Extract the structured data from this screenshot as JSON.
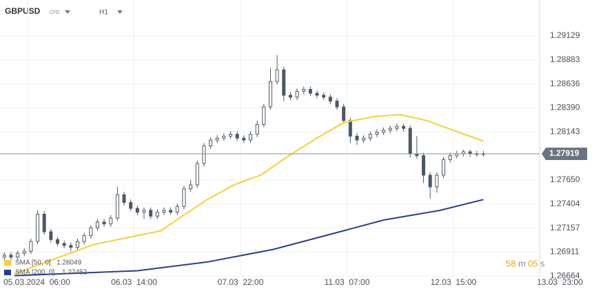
{
  "header": {
    "symbol": "GBPUSD",
    "symbol_type": "CFD",
    "interval": "H1"
  },
  "countdown": {
    "minutes": "58",
    "minutes_unit": "m",
    "seconds": "05",
    "seconds_unit": "s"
  },
  "chart_data": {
    "type": "candlestick",
    "color": "#4d5866",
    "x": [
      -7,
      -5,
      -3,
      -1,
      1,
      3,
      5,
      7,
      9,
      11,
      13,
      15,
      17,
      19,
      21,
      23,
      25,
      27,
      29,
      31,
      33,
      35,
      37,
      39,
      41,
      43,
      45,
      47,
      49,
      51,
      53,
      55,
      57,
      59,
      61,
      63,
      65,
      67,
      69,
      71,
      73,
      75,
      77,
      79,
      81,
      83,
      85,
      87,
      89,
      91,
      93,
      95,
      97,
      99,
      101,
      103,
      105,
      107,
      109,
      111,
      113,
      115,
      117,
      119,
      121,
      123,
      125,
      127,
      129,
      131,
      133,
      135,
      137
    ],
    "open": [
      1.2686,
      1.2688,
      1.2686,
      1.269,
      1.2692,
      1.2702,
      1.273,
      1.2712,
      1.2704,
      1.27,
      1.2698,
      1.2696,
      1.2702,
      1.2708,
      1.2716,
      1.2722,
      1.272,
      1.2726,
      1.275,
      1.2742,
      1.2736,
      1.2732,
      1.2734,
      1.2728,
      1.2732,
      1.2734,
      1.2732,
      1.2738,
      1.2756,
      1.276,
      1.2782,
      1.28,
      1.2806,
      1.2808,
      1.281,
      1.2812,
      1.2808,
      1.2806,
      1.2812,
      1.2822,
      1.284,
      1.2866,
      1.2878,
      1.2852,
      1.285,
      1.2856,
      1.2858,
      1.2854,
      1.2852,
      1.285,
      1.2846,
      1.284,
      1.2826,
      1.281,
      1.2806,
      1.2808,
      1.2812,
      1.2814,
      1.2816,
      1.2818,
      1.282,
      1.2818,
      1.2792,
      1.279,
      1.277,
      1.2758,
      1.277,
      1.2786,
      1.279,
      1.2792,
      1.2794,
      1.2792,
      1.2792
    ],
    "high": [
      1.2691,
      1.2691,
      1.2693,
      1.2695,
      1.2705,
      1.2734,
      1.2733,
      1.2715,
      1.2707,
      1.2703,
      1.2701,
      1.2705,
      1.2711,
      1.2719,
      1.2725,
      1.2725,
      1.2729,
      1.2758,
      1.2753,
      1.2745,
      1.2739,
      1.2737,
      1.2737,
      1.2735,
      1.2737,
      1.2737,
      1.2741,
      1.2759,
      1.2765,
      1.2785,
      1.2803,
      1.2809,
      1.2811,
      1.2813,
      1.2815,
      1.2815,
      1.2811,
      1.2815,
      1.2826,
      1.2843,
      1.288,
      1.2893,
      1.2881,
      1.2855,
      1.2859,
      1.2861,
      1.2861,
      1.2857,
      1.2855,
      1.2853,
      1.2849,
      1.2843,
      1.2829,
      1.2813,
      1.2811,
      1.2815,
      1.2817,
      1.2819,
      1.2821,
      1.2823,
      1.2823,
      1.2821,
      1.281,
      1.2793,
      1.2773,
      1.2773,
      1.2789,
      1.2793,
      1.2795,
      1.2796,
      1.2796,
      1.2795,
      1.2795
    ],
    "low": [
      1.2683,
      1.2683,
      1.2683,
      1.2687,
      1.2689,
      1.2699,
      1.2709,
      1.2701,
      1.2697,
      1.2695,
      1.2692,
      1.2693,
      1.2699,
      1.2705,
      1.2713,
      1.2717,
      1.2717,
      1.2723,
      1.2739,
      1.2733,
      1.2729,
      1.2725,
      1.2725,
      1.2725,
      1.2729,
      1.2729,
      1.2729,
      1.2735,
      1.2753,
      1.2757,
      1.2779,
      1.2797,
      1.2803,
      1.2805,
      1.2807,
      1.2805,
      1.2803,
      1.2803,
      1.2809,
      1.2819,
      1.2837,
      1.2863,
      1.2846,
      1.2847,
      1.2847,
      1.2853,
      1.2851,
      1.2849,
      1.2847,
      1.2843,
      1.2837,
      1.2823,
      1.2803,
      1.2801,
      1.2803,
      1.2805,
      1.2809,
      1.2811,
      1.2813,
      1.2815,
      1.2815,
      1.2788,
      1.2787,
      1.2762,
      1.2746,
      1.2752,
      1.2767,
      1.2783,
      1.2787,
      1.2789,
      1.2789,
      1.2789,
      1.2789
    ],
    "close": [
      1.2688,
      1.2686,
      1.269,
      1.2692,
      1.2702,
      1.273,
      1.2712,
      1.2704,
      1.27,
      1.2698,
      1.2696,
      1.2702,
      1.2708,
      1.2716,
      1.2722,
      1.272,
      1.2726,
      1.275,
      1.2742,
      1.2736,
      1.2732,
      1.2734,
      1.2728,
      1.2732,
      1.2734,
      1.2732,
      1.2738,
      1.2756,
      1.276,
      1.2782,
      1.28,
      1.2806,
      1.2808,
      1.281,
      1.2812,
      1.2808,
      1.2806,
      1.2812,
      1.2822,
      1.284,
      1.2866,
      1.2878,
      1.2852,
      1.285,
      1.2856,
      1.2858,
      1.2854,
      1.2852,
      1.285,
      1.2846,
      1.284,
      1.2826,
      1.281,
      1.2806,
      1.2808,
      1.2812,
      1.2814,
      1.2816,
      1.2818,
      1.282,
      1.2818,
      1.2792,
      1.279,
      1.277,
      1.2758,
      1.277,
      1.2786,
      1.279,
      1.2792,
      1.2794,
      1.2792,
      1.2792,
      1.2792
    ],
    "series": [
      {
        "name": "SMA [50, 0]",
        "color": "#f5d033",
        "last": 1.28049,
        "x": [
          -4,
          20,
          40,
          54,
          62,
          70,
          79,
          87,
          95,
          104,
          112,
          120,
          128,
          137
        ],
        "values": [
          1.2669,
          1.2699,
          1.2713,
          1.2745,
          1.276,
          1.277,
          1.2791,
          1.2808,
          1.2824,
          1.283,
          1.2832,
          1.2826,
          1.2816,
          1.2805
        ]
      },
      {
        "name": "SMA [200, 0]",
        "color": "#2e3a8c",
        "last": 1.27452,
        "x": [
          -4,
          33,
          54,
          74,
          95,
          107,
          124,
          137
        ],
        "values": [
          1.2667,
          1.2672,
          1.2681,
          1.2694,
          1.2713,
          1.2724,
          1.2734,
          1.2745
        ]
      }
    ],
    "last_price": 1.27919,
    "xlim": [
      -8.3,
      153.9
    ],
    "xticks": [
      {
        "value": 0,
        "label": "05.03.2024  06:00"
      },
      {
        "value": 32,
        "label": "06.03  14:00"
      },
      {
        "value": 64,
        "label": "07.03  22:00"
      },
      {
        "value": 96,
        "label": "11.03  07:00"
      },
      {
        "value": 128,
        "label": "12.03  15:00"
      },
      {
        "value": 160,
        "label": "13.03  23:00"
      }
    ],
    "ylim": [
      1.2666,
      1.29496
    ],
    "yticks": [
      1.26664,
      1.26911,
      1.27157,
      1.27404,
      {
        "value": 1.2765,
        "label": "1.27650"
      },
      1.28143,
      {
        "value": 1.2839,
        "label": "1.28390"
      },
      1.28636,
      1.28883,
      1.29129
    ],
    "grid": true
  }
}
